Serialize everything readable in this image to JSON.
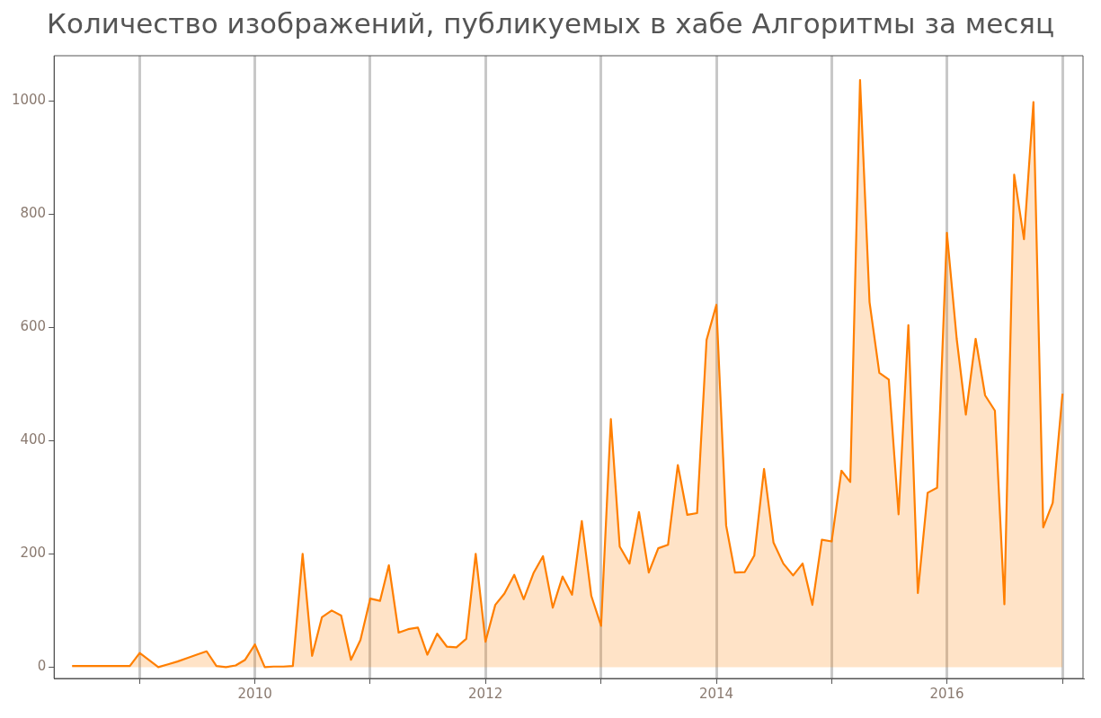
{
  "chart_data": {
    "type": "area",
    "title": "Количество изображений, публикуемых в хабе Алгоритмы за месяц",
    "x": [
      "2008-06",
      "2008-07",
      "2008-08",
      "2008-09",
      "2008-10",
      "2008-11",
      "2008-12",
      "2009-01",
      "2009-02",
      "2009-03",
      "2009-04",
      "2009-05",
      "2009-06",
      "2009-07",
      "2009-08",
      "2009-09",
      "2009-10",
      "2009-11",
      "2009-12",
      "2010-01",
      "2010-02",
      "2010-03",
      "2010-04",
      "2010-05",
      "2010-06",
      "2010-07",
      "2010-08",
      "2010-09",
      "2010-10",
      "2010-11",
      "2010-12",
      "2011-01",
      "2011-02",
      "2011-03",
      "2011-04",
      "2011-05",
      "2011-06",
      "2011-07",
      "2011-08",
      "2011-09",
      "2011-10",
      "2011-11",
      "2011-12",
      "2012-01",
      "2012-02",
      "2012-03",
      "2012-04",
      "2012-05",
      "2012-06",
      "2012-07",
      "2012-08",
      "2012-09",
      "2012-10",
      "2012-11",
      "2012-12",
      "2013-01",
      "2013-02",
      "2013-03",
      "2013-04",
      "2013-05",
      "2013-06",
      "2013-07",
      "2013-08",
      "2013-09",
      "2013-10",
      "2013-11",
      "2013-12",
      "2014-01",
      "2014-02",
      "2014-03",
      "2014-04",
      "2014-05",
      "2014-06",
      "2014-07",
      "2014-08",
      "2014-09",
      "2014-10",
      "2014-11",
      "2014-12",
      "2015-01",
      "2015-02",
      "2015-03",
      "2015-04",
      "2015-05",
      "2015-06",
      "2015-07",
      "2015-08",
      "2015-09",
      "2015-10",
      "2015-11",
      "2015-12",
      "2016-01",
      "2016-02",
      "2016-03",
      "2016-04",
      "2016-05",
      "2016-06",
      "2016-07",
      "2016-08",
      "2016-09",
      "2016-10",
      "2016-11",
      "2016-12",
      "2017-01"
    ],
    "series": [
      {
        "color": "#ff7f00",
        "values": [
          2,
          2,
          2,
          2,
          2,
          2,
          2,
          25,
          12,
          0,
          5,
          10,
          16,
          22,
          28,
          2,
          0,
          3,
          13,
          40,
          0,
          1,
          1,
          2,
          200,
          20,
          88,
          100,
          91,
          13,
          48,
          121,
          117,
          180,
          61,
          67,
          70,
          22,
          59,
          36,
          35,
          50,
          200,
          45,
          110,
          130,
          163,
          120,
          166,
          196,
          105,
          160,
          128,
          258,
          126,
          73,
          438,
          213,
          183,
          274,
          167,
          210,
          216,
          357,
          269,
          272,
          578,
          640,
          250,
          167,
          168,
          197,
          350,
          220,
          183,
          162,
          183,
          110,
          225,
          222,
          347,
          327,
          1037,
          645,
          520,
          508,
          270,
          604,
          131,
          308,
          317,
          767,
          580,
          446,
          580,
          480,
          453,
          111,
          870,
          756,
          998,
          247,
          290,
          483
        ]
      }
    ],
    "xlim": [
      "2008-04-05",
      "2017-03-07"
    ],
    "xticks": [
      {
        "value": "2009",
        "label": null
      },
      {
        "value": "2010",
        "label": "2010"
      },
      {
        "value": "2011",
        "label": null
      },
      {
        "value": "2012",
        "label": "2012"
      },
      {
        "value": "2013",
        "label": null
      },
      {
        "value": "2014",
        "label": "2014"
      },
      {
        "value": "2015",
        "label": null
      },
      {
        "value": "2016",
        "label": "2016"
      },
      {
        "value": "2017",
        "label": null
      }
    ],
    "ylim": [
      -20,
      1080
    ],
    "yticks": [
      0,
      200,
      400,
      600,
      800,
      1000
    ],
    "grid": "x",
    "legend": false,
    "marker": "none",
    "line_style": "solid"
  }
}
